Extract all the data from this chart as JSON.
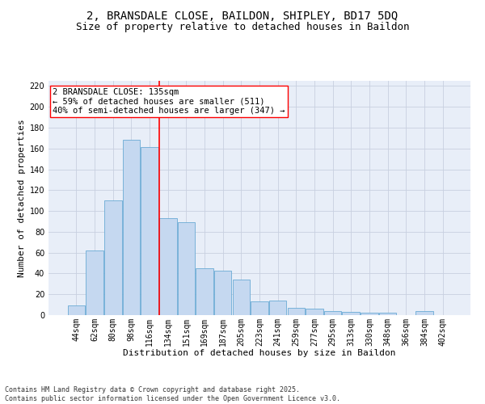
{
  "title_line1": "2, BRANSDALE CLOSE, BAILDON, SHIPLEY, BD17 5DQ",
  "title_line2": "Size of property relative to detached houses in Baildon",
  "xlabel": "Distribution of detached houses by size in Baildon",
  "ylabel": "Number of detached properties",
  "categories": [
    "44sqm",
    "62sqm",
    "80sqm",
    "98sqm",
    "116sqm",
    "134sqm",
    "151sqm",
    "169sqm",
    "187sqm",
    "205sqm",
    "223sqm",
    "241sqm",
    "259sqm",
    "277sqm",
    "295sqm",
    "313sqm",
    "330sqm",
    "348sqm",
    "366sqm",
    "384sqm",
    "402sqm"
  ],
  "values": [
    9,
    62,
    110,
    168,
    161,
    93,
    89,
    45,
    43,
    34,
    13,
    14,
    7,
    6,
    4,
    3,
    2,
    2,
    0,
    4,
    0
  ],
  "bar_color": "#c5d8f0",
  "bar_edge_color": "#6aaad4",
  "vline_color": "red",
  "annotation_text": "2 BRANSDALE CLOSE: 135sqm\n← 59% of detached houses are smaller (511)\n40% of semi-detached houses are larger (347) →",
  "annotation_box_color": "white",
  "annotation_box_edge_color": "red",
  "ylim": [
    0,
    225
  ],
  "grid_color": "#c8d0e0",
  "background_color": "#e8eef8",
  "footer": "Contains HM Land Registry data © Crown copyright and database right 2025.\nContains public sector information licensed under the Open Government Licence v3.0.",
  "title_fontsize": 10,
  "subtitle_fontsize": 9,
  "axis_label_fontsize": 8,
  "tick_fontsize": 7,
  "annotation_fontsize": 7.5,
  "footer_fontsize": 6
}
